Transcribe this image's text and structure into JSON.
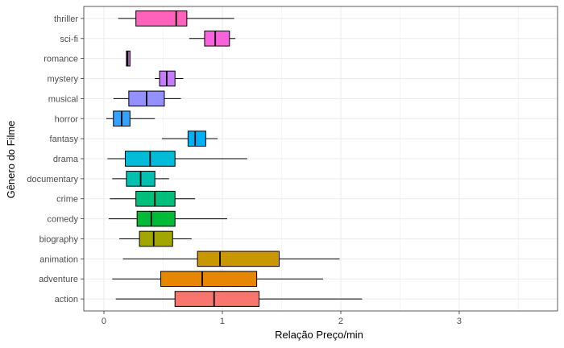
{
  "chart_data": {
    "type": "boxplot",
    "orientation": "horizontal",
    "title": "",
    "xlabel": "Relação Preço/min",
    "ylabel": "Gênero do Filme",
    "xlim": [
      -0.17,
      3.83
    ],
    "x_ticks": [
      0,
      1,
      2,
      3
    ],
    "x_tick_labels": [
      "0",
      "1",
      "2",
      "3"
    ],
    "grid": true,
    "legend": "none",
    "categories": [
      "action",
      "adventure",
      "animation",
      "biography",
      "comedy",
      "crime",
      "documentary",
      "drama",
      "fantasy",
      "horror",
      "musical",
      "mystery",
      "romance",
      "sci-fi",
      "thriller"
    ],
    "series": [
      {
        "category": "action",
        "whisker_low": 0.1,
        "q1": 0.6,
        "median": 0.93,
        "q3": 1.31,
        "whisker_high": 2.18,
        "color": "#F8766D"
      },
      {
        "category": "adventure",
        "whisker_low": 0.07,
        "q1": 0.48,
        "median": 0.83,
        "q3": 1.29,
        "whisker_high": 1.85,
        "color": "#E58700"
      },
      {
        "category": "animation",
        "whisker_low": 0.16,
        "q1": 0.79,
        "median": 0.98,
        "q3": 1.48,
        "whisker_high": 1.99,
        "color": "#C99800"
      },
      {
        "category": "biography",
        "whisker_low": 0.13,
        "q1": 0.3,
        "median": 0.42,
        "q3": 0.58,
        "whisker_high": 0.74,
        "color": "#A3A500"
      },
      {
        "category": "comedy",
        "whisker_low": 0.04,
        "q1": 0.28,
        "median": 0.4,
        "q3": 0.6,
        "whisker_high": 1.04,
        "color": "#00BA38"
      },
      {
        "category": "crime",
        "whisker_low": 0.05,
        "q1": 0.27,
        "median": 0.43,
        "q3": 0.6,
        "whisker_high": 0.77,
        "color": "#00BF7D"
      },
      {
        "category": "documentary",
        "whisker_low": 0.07,
        "q1": 0.19,
        "median": 0.31,
        "q3": 0.43,
        "whisker_high": 0.55,
        "color": "#00C0AF"
      },
      {
        "category": "drama",
        "whisker_low": 0.03,
        "q1": 0.18,
        "median": 0.39,
        "q3": 0.6,
        "whisker_high": 1.21,
        "color": "#00BCD8"
      },
      {
        "category": "fantasy",
        "whisker_low": 0.49,
        "q1": 0.71,
        "median": 0.77,
        "q3": 0.86,
        "whisker_high": 0.96,
        "color": "#00B0F6"
      },
      {
        "category": "horror",
        "whisker_low": 0.02,
        "q1": 0.08,
        "median": 0.15,
        "q3": 0.22,
        "whisker_high": 0.43,
        "color": "#35A2FF"
      },
      {
        "category": "musical",
        "whisker_low": 0.08,
        "q1": 0.21,
        "median": 0.36,
        "q3": 0.51,
        "whisker_high": 0.65,
        "color": "#9590FF"
      },
      {
        "category": "mystery",
        "whisker_low": 0.43,
        "q1": 0.47,
        "median": 0.53,
        "q3": 0.6,
        "whisker_high": 0.67,
        "color": "#C77CFF"
      },
      {
        "category": "romance",
        "whisker_low": 0.19,
        "q1": 0.19,
        "median": 0.2,
        "q3": 0.22,
        "whisker_high": 0.22,
        "color": "#E76BF3"
      },
      {
        "category": "sci-fi",
        "whisker_low": 0.72,
        "q1": 0.85,
        "median": 0.94,
        "q3": 1.06,
        "whisker_high": 1.11,
        "color": "#FA62DB"
      },
      {
        "category": "thriller",
        "whisker_low": 0.12,
        "q1": 0.27,
        "median": 0.61,
        "q3": 0.7,
        "whisker_high": 1.1,
        "color": "#FF62BC"
      }
    ]
  }
}
